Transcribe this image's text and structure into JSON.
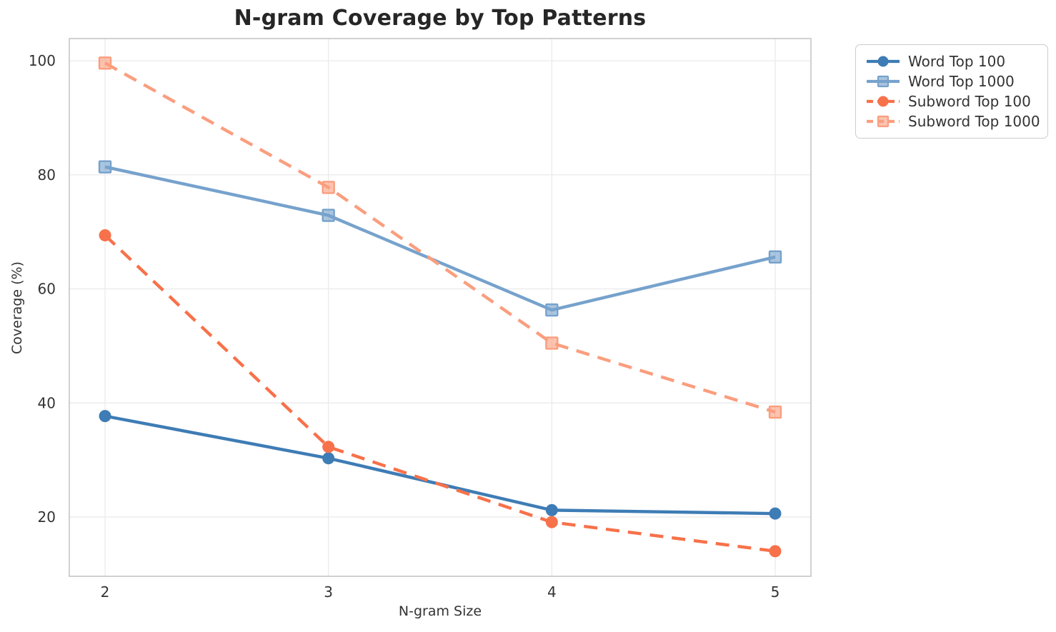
{
  "chart_data": {
    "type": "line",
    "title": "N-gram Coverage by Top Patterns",
    "xlabel": "N-gram Size",
    "ylabel": "Coverage (%)",
    "x": [
      2,
      3,
      4,
      5
    ],
    "x_ticks": [
      {
        "value": 2,
        "label": "2"
      },
      {
        "value": 3,
        "label": "3"
      },
      {
        "value": 4,
        "label": "4"
      },
      {
        "value": 5,
        "label": "5"
      }
    ],
    "y_ticks": [
      {
        "value": 20,
        "label": "20"
      },
      {
        "value": 40,
        "label": "40"
      },
      {
        "value": 60,
        "label": "60"
      },
      {
        "value": 80,
        "label": "80"
      },
      {
        "value": 100,
        "label": "100"
      }
    ],
    "xlim": [
      1.84,
      5.16
    ],
    "ylim": [
      9.6,
      103.9
    ],
    "grid": true,
    "legend_position": "outside-top-right",
    "series": [
      {
        "name": "Word Top 100",
        "values": [
          37.7,
          30.3,
          21.2,
          20.6
        ],
        "color": "#3E7CB5",
        "line_style": "solid",
        "marker": "circle"
      },
      {
        "name": "Word Top 1000",
        "values": [
          81.4,
          72.9,
          56.3,
          65.6
        ],
        "color": "#76A2CC",
        "line_style": "solid",
        "marker": "square"
      },
      {
        "name": "Subword Top 100",
        "values": [
          69.4,
          32.3,
          19.1,
          14.0
        ],
        "color": "#F7714A",
        "line_style": "dashed",
        "marker": "circle"
      },
      {
        "name": "Subword Top 1000",
        "values": [
          99.6,
          77.8,
          50.5,
          38.4
        ],
        "color": "#FA9E7E",
        "line_style": "dashed",
        "marker": "square"
      }
    ],
    "colors": {
      "grid": "#ececec",
      "spine": "#cccccc",
      "tick_text": "#333333",
      "title_text": "#262626"
    }
  }
}
